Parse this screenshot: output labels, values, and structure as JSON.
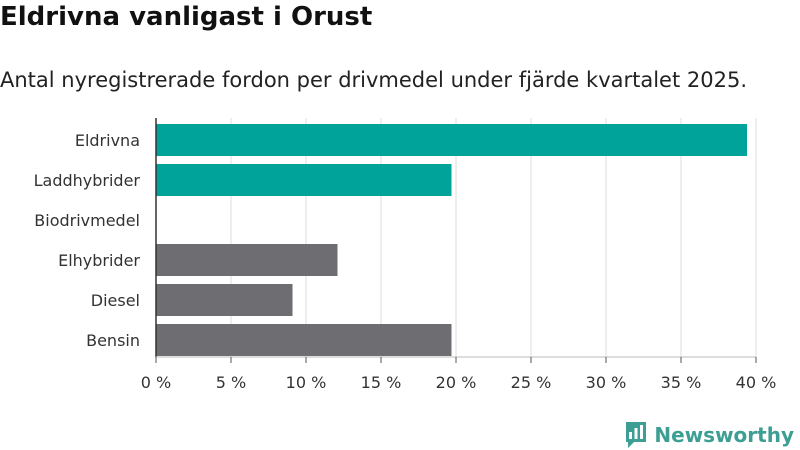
{
  "header": {
    "title": "Eldrivna vanligast i Orust",
    "subtitle": "Antal nyregistrerade fordon per drivmedel under fjärde kvartalet 2025."
  },
  "brand": {
    "name": "Newsworthy",
    "icon": "newsworthy-logo-icon",
    "color": "#3d9e93"
  },
  "chart_data": {
    "type": "bar",
    "orientation": "horizontal",
    "title": "",
    "xlabel": "",
    "ylabel": "",
    "categories": [
      "Eldrivna",
      "Laddhybrider",
      "Biodrivmedel",
      "Elhybrider",
      "Diesel",
      "Bensin"
    ],
    "values": [
      39.4,
      19.7,
      0,
      12.1,
      9.1,
      19.7
    ],
    "colors": [
      "#00a39a",
      "#00a39a",
      "#00a39a",
      "#6d6d72",
      "#6d6d72",
      "#6d6d72"
    ],
    "xlim": [
      0,
      40
    ],
    "xticks": [
      0,
      5,
      10,
      15,
      20,
      25,
      30,
      35,
      40
    ],
    "xtick_labels": [
      "0 %",
      "5 %",
      "10 %",
      "15 %",
      "20 %",
      "25 %",
      "30 %",
      "35 %",
      "40 %"
    ],
    "grid": true,
    "legend": "none"
  }
}
